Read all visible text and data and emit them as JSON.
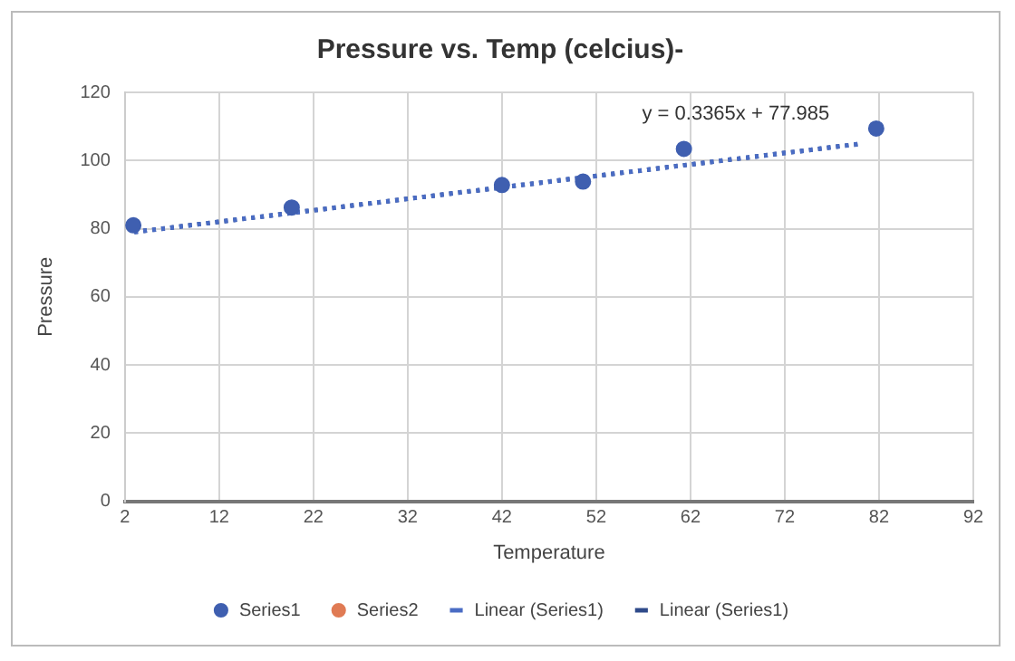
{
  "chart_data": {
    "type": "scatter",
    "title": "Pressure vs. Temp (celcius)-",
    "xlabel": "Temperature",
    "ylabel": "Pressure",
    "xlim": [
      2,
      92
    ],
    "xticks": [
      2,
      12,
      22,
      32,
      42,
      52,
      62,
      72,
      82,
      92
    ],
    "ylim": [
      0,
      120
    ],
    "yticks": [
      0,
      20,
      40,
      60,
      80,
      100,
      120
    ],
    "grid": true,
    "legend": "bottom",
    "marker": "circle",
    "series": [
      {
        "name": "Series1",
        "type": "scatter",
        "color": "#3f5fb0",
        "x": [
          2.9,
          19.7,
          42,
          50.6,
          61.3,
          81.7
        ],
        "values": [
          81,
          86.2,
          92.8,
          93.8,
          103.4,
          109.4
        ]
      },
      {
        "name": "Series2",
        "type": "scatter",
        "color": "#e07b54"
      },
      {
        "name": "Linear (Series1)",
        "type": "line",
        "color": "#4a6cc4",
        "marker": "none",
        "line_style": "dotted",
        "x": [
          3,
          80
        ],
        "values": [
          79,
          104.9
        ]
      },
      {
        "name": "Linear (Series1)",
        "type": "line",
        "color": "#2f4a8a",
        "marker": "none",
        "line_style": "dotted",
        "x": [
          3,
          80
        ],
        "values": [
          79,
          104.9
        ]
      }
    ],
    "annotations": [
      "y = 0.3365x + 77.985"
    ]
  }
}
